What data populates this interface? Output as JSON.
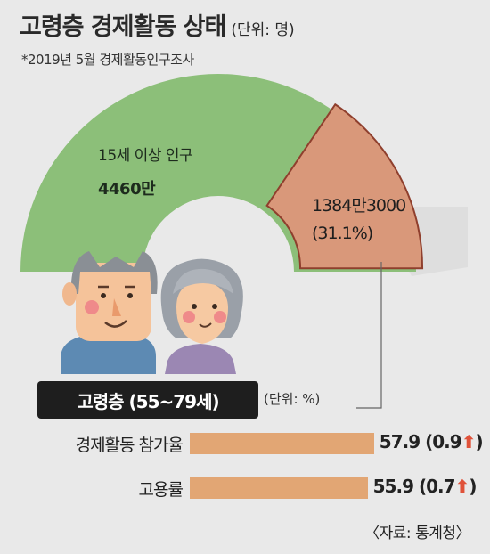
{
  "header": {
    "title": "고령층 경제활동 상태",
    "title_unit": "(단위: 명)",
    "subtitle": "*2019년 5월 경제활동인구조사"
  },
  "donut": {
    "total_label": "15세 이상 인구",
    "total_value": "4460만",
    "segment_value": "1384만3000",
    "segment_pct": "(31.1%)"
  },
  "badge": {
    "label": "고령층 (55~79세)"
  },
  "bars_unit": "(단위: %)",
  "source": "〈자료: 통계청〉",
  "colors": {
    "green": "#8cbf79",
    "segment": "#d9987a",
    "segment_border": "#8f3f2d",
    "bar": "#e2a674",
    "arrow": "#e0523a"
  },
  "chart_data": [
    {
      "type": "pie",
      "title": "",
      "total": 44600000,
      "slices": [
        {
          "name": "고령층 (55~79세)",
          "value": 13843000,
          "percent": 31.1
        },
        {
          "name": "",
          "value": 30757000,
          "percent": 68.9
        }
      ]
    },
    {
      "type": "bar",
      "orientation": "horizontal",
      "categories": [
        "경제활동 참가율",
        "고용률"
      ],
      "values": [
        57.9,
        55.9
      ],
      "changes": [
        "0.9",
        "0.7"
      ],
      "change_direction": [
        "up",
        "up"
      ],
      "unit": "%",
      "xlim": [
        0,
        70
      ]
    }
  ]
}
